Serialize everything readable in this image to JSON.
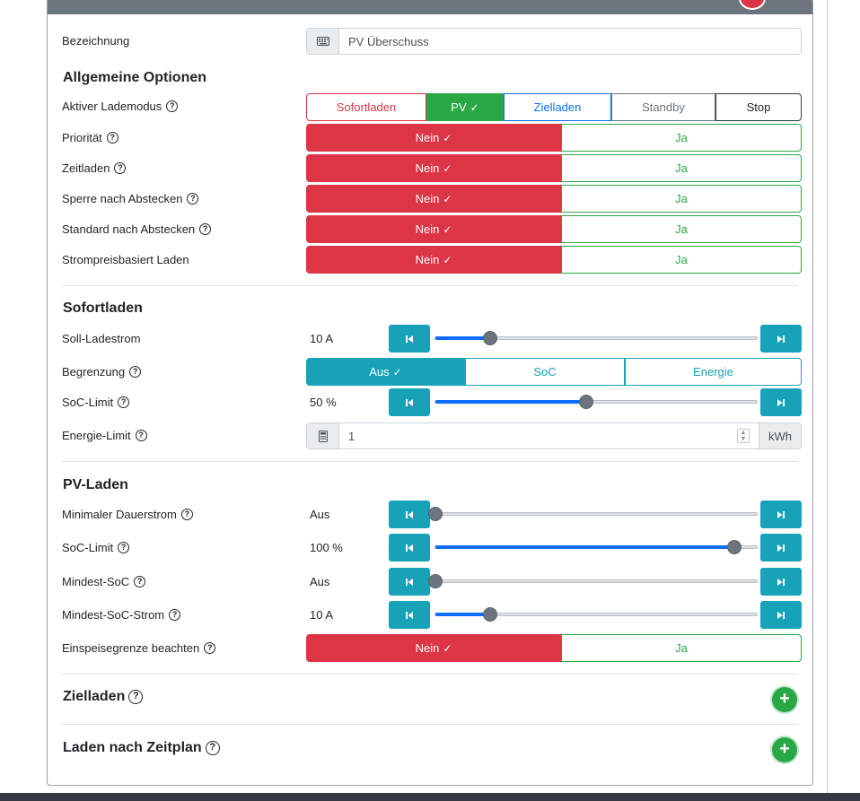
{
  "name_field": {
    "label": "Bezeichnung",
    "value": "PV Überschuss"
  },
  "general": {
    "title": "Allgemeine Optionen",
    "mode": {
      "label": "Aktiver Lademodus",
      "options": [
        "Sofortladen",
        "PV",
        "Zielladen",
        "Standby",
        "Stop"
      ],
      "selected": "PV"
    },
    "toggles": [
      {
        "label": "Priorität",
        "help": true,
        "no": "Nein",
        "yes": "Ja",
        "selected": "Nein"
      },
      {
        "label": "Zeitladen",
        "help": true,
        "no": "Nein",
        "yes": "Ja",
        "selected": "Nein"
      },
      {
        "label": "Sperre nach Abstecken",
        "help": true,
        "no": "Nein",
        "yes": "Ja",
        "selected": "Nein"
      },
      {
        "label": "Standard nach Abstecken",
        "help": true,
        "no": "Nein",
        "yes": "Ja",
        "selected": "Nein"
      },
      {
        "label": "Strompreisbasiert Laden",
        "help": false,
        "no": "Nein",
        "yes": "Ja",
        "selected": "Nein"
      }
    ]
  },
  "instant": {
    "title": "Sofortladen",
    "current": {
      "label": "Soll-Ladestrom",
      "value": "10 A",
      "level": 0.17
    },
    "limit": {
      "label": "Begrenzung",
      "options": [
        "Aus",
        "SoC",
        "Energie"
      ],
      "selected": "Aus"
    },
    "soc_limit": {
      "label": "SoC-Limit",
      "value": "50 %",
      "level": 0.47
    },
    "energy_limit": {
      "label": "Energie-Limit",
      "value": "1",
      "unit": "kWh"
    }
  },
  "pv": {
    "title": "PV-Laden",
    "min_current": {
      "label": "Minimaler Dauerstrom",
      "value": "Aus",
      "level": 0.0
    },
    "soc_limit": {
      "label": "SoC-Limit",
      "value": "100 %",
      "level": 0.93
    },
    "min_soc": {
      "label": "Mindest-SoC",
      "value": "Aus",
      "level": 0.0
    },
    "min_soc_current": {
      "label": "Mindest-SoC-Strom",
      "value": "10 A",
      "level": 0.17
    },
    "feed_in": {
      "label": "Einspeisegrenze beachten",
      "no": "Nein",
      "yes": "Ja",
      "selected": "Nein"
    }
  },
  "target": {
    "title": "Zielladen"
  },
  "schedule": {
    "title": "Laden nach Zeitplan"
  },
  "colors": {
    "danger": "#dc3545",
    "success": "#28a745",
    "primary": "#0d6efd",
    "info": "#17a2b8",
    "secondary": "#6c757d"
  },
  "icons": {
    "keyboard": "keyboard-icon",
    "calculator": "calculator-icon",
    "help": "question-circle-icon",
    "check": "check-icon",
    "step_back": "step-backward-icon",
    "step_forward": "step-forward-icon",
    "add": "plus-icon"
  }
}
